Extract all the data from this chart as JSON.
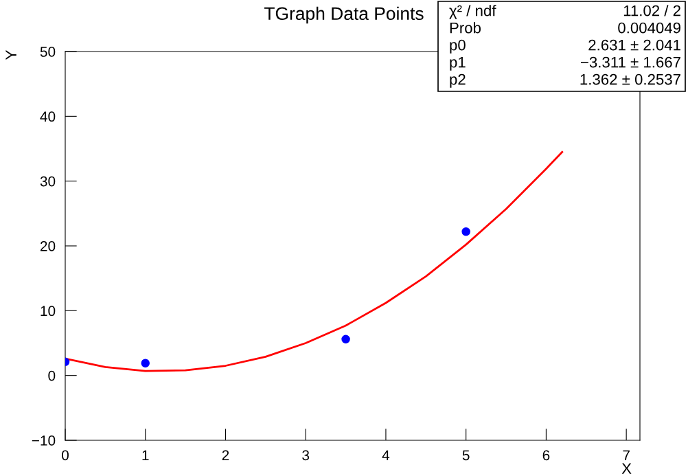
{
  "chart_data": {
    "type": "scatter",
    "title": "TGraph Data Points",
    "xlabel": "X",
    "ylabel": "Y",
    "xlim": [
      0,
      7.17
    ],
    "ylim": [
      -10,
      50
    ],
    "xticks": [
      0,
      1,
      2,
      3,
      4,
      5,
      6,
      7
    ],
    "yticks": [
      {
        "value": -10,
        "label": "−10"
      },
      0,
      10,
      20,
      30,
      40,
      50
    ],
    "grid": false,
    "legend": false,
    "marker": "circle",
    "series": [
      {
        "color": "#0000ff",
        "x": [
          0,
          1,
          3.5,
          5
        ],
        "values": [
          2.1,
          1.9,
          5.6,
          22.2
        ]
      },
      {
        "type": "line",
        "color": "#ff0000",
        "marker": "none",
        "line_style": "solid",
        "x": [
          0,
          0.5,
          1,
          1.5,
          2,
          2.5,
          3,
          3.5,
          4,
          4.5,
          5,
          5.5,
          6,
          6.2
        ],
        "values": [
          2.6,
          1.3,
          0.7,
          0.8,
          1.5,
          2.9,
          5.0,
          7.7,
          11.2,
          15.3,
          20.2,
          25.7,
          31.9,
          34.5
        ]
      }
    ],
    "annotations": [
      "χ² / ndf",
      "11.02 / 2",
      "Prob",
      "0.004049",
      "p0",
      "2.631 ± 2.041",
      "p1",
      "−3.311 ± 1.667",
      "p2",
      "1.362 ± 0.2537"
    ]
  }
}
